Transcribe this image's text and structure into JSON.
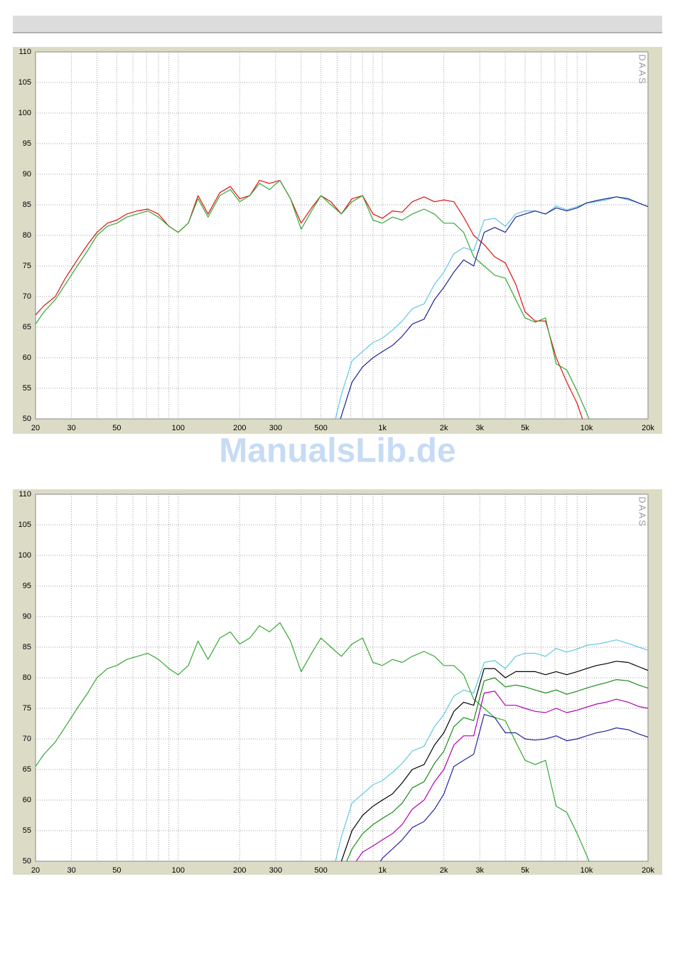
{
  "watermark": "ManualsLib.de",
  "chart_data": [
    {
      "type": "line",
      "xscale": "log",
      "grid": true,
      "annotation": "DAAS",
      "xlim": [
        20,
        20000
      ],
      "ylim": [
        50,
        110
      ],
      "yticks": [
        50,
        55,
        60,
        65,
        70,
        75,
        80,
        85,
        90,
        95,
        100,
        105,
        110
      ],
      "xticks": [
        20,
        30,
        50,
        100,
        200,
        300,
        500,
        {
          "value": 1000,
          "label": "1k"
        },
        {
          "value": 2000,
          "label": "2k"
        },
        {
          "value": 3000,
          "label": "3k"
        },
        {
          "value": 5000,
          "label": "5k"
        },
        {
          "value": 10000,
          "label": "10k"
        },
        {
          "value": 20000,
          "label": "20k"
        }
      ],
      "xminor": [
        40,
        60,
        70,
        80,
        90,
        400,
        600,
        700,
        800,
        900,
        4000,
        6000,
        7000,
        8000,
        9000
      ],
      "x": [
        20,
        22,
        25,
        28,
        32,
        36,
        40,
        45,
        50,
        56,
        63,
        71,
        80,
        90,
        100,
        112,
        125,
        140,
        160,
        180,
        200,
        224,
        250,
        280,
        315,
        355,
        400,
        450,
        500,
        560,
        630,
        710,
        800,
        900,
        1000,
        1120,
        1250,
        1400,
        1600,
        1800,
        2000,
        2240,
        2500,
        2800,
        3150,
        3550,
        4000,
        4500,
        5000,
        5600,
        6300,
        7100,
        8000,
        9000,
        10000,
        11200,
        12500,
        14000,
        16000,
        18000,
        20000
      ],
      "series": [
        {
          "color": "#e01010",
          "values": [
            67,
            68.5,
            70,
            73,
            76,
            78.5,
            80.5,
            82,
            82.5,
            83.5,
            84,
            84.3,
            83.5,
            81.5,
            80.5,
            82,
            86.5,
            83.5,
            87,
            88,
            86,
            86.5,
            89,
            88.5,
            89,
            86,
            82,
            84.5,
            86.5,
            85.5,
            83.5,
            86,
            86.5,
            83.5,
            82.8,
            84,
            83.8,
            85.5,
            86.3,
            85.5,
            85.8,
            85.5,
            83,
            80,
            78.5,
            76.5,
            75.5,
            72,
            67.5,
            66,
            66,
            60,
            56,
            52.5,
            48,
            null,
            null,
            null,
            null,
            null,
            null
          ]
        },
        {
          "color": "#34a834",
          "values": [
            65.5,
            67.5,
            69.5,
            72,
            75,
            77.5,
            80,
            81.5,
            82,
            83,
            83.5,
            84,
            83,
            81.5,
            80.5,
            82,
            86,
            83,
            86.5,
            87.5,
            85.5,
            86.5,
            88.5,
            87.5,
            89,
            86,
            81,
            84,
            86.5,
            85,
            83.5,
            85.5,
            86.5,
            82.5,
            82,
            83,
            82.5,
            83.5,
            84.3,
            83.5,
            82,
            82,
            80.5,
            76.5,
            75,
            73.5,
            73,
            69.5,
            66.5,
            65.8,
            66.5,
            59,
            58,
            54.5,
            51,
            47,
            null,
            null,
            null,
            null,
            null
          ]
        },
        {
          "color": "#60c8e0",
          "values": [
            null,
            null,
            null,
            null,
            null,
            null,
            null,
            null,
            null,
            null,
            null,
            null,
            null,
            null,
            null,
            null,
            null,
            null,
            null,
            null,
            null,
            null,
            null,
            null,
            null,
            null,
            null,
            null,
            null,
            47,
            54,
            59.5,
            61,
            62.5,
            63.2,
            64.5,
            66,
            68,
            68.8,
            72,
            74,
            77,
            78,
            77.5,
            82.5,
            82.8,
            81.5,
            83.5,
            84,
            84,
            83.5,
            84.8,
            84.2,
            84.7,
            85.3,
            85.5,
            85.8,
            86.3,
            85.8,
            85.3,
            84.7
          ]
        },
        {
          "color": "#1c2490",
          "values": [
            null,
            null,
            null,
            null,
            null,
            null,
            null,
            null,
            null,
            null,
            null,
            null,
            null,
            null,
            null,
            null,
            null,
            null,
            null,
            null,
            null,
            null,
            null,
            null,
            null,
            null,
            null,
            null,
            null,
            45,
            50.5,
            56,
            58.5,
            60,
            61,
            62,
            63.5,
            65.5,
            66.3,
            69.5,
            71.5,
            74,
            76,
            75,
            80.5,
            81.3,
            80.5,
            83,
            83.5,
            84,
            83.5,
            84.5,
            84,
            84.5,
            85.3,
            85.7,
            86,
            86.3,
            86,
            85.3,
            84.7
          ]
        }
      ]
    },
    {
      "type": "line",
      "xscale": "log",
      "grid": true,
      "annotation": "DAAS",
      "xlim": [
        20,
        20000
      ],
      "ylim": [
        50,
        110
      ],
      "yticks": [
        50,
        55,
        60,
        65,
        70,
        75,
        80,
        85,
        90,
        95,
        100,
        105,
        110
      ],
      "xticks": [
        20,
        30,
        50,
        100,
        200,
        300,
        500,
        {
          "value": 1000,
          "label": "1k"
        },
        {
          "value": 2000,
          "label": "2k"
        },
        {
          "value": 3000,
          "label": "3k"
        },
        {
          "value": 5000,
          "label": "5k"
        },
        {
          "value": 10000,
          "label": "10k"
        },
        {
          "value": 20000,
          "label": "20k"
        }
      ],
      "xminor": [
        40,
        60,
        70,
        80,
        90,
        400,
        600,
        700,
        800,
        900,
        4000,
        6000,
        7000,
        8000,
        9000
      ],
      "x": [
        20,
        22,
        25,
        28,
        32,
        36,
        40,
        45,
        50,
        56,
        63,
        71,
        80,
        90,
        100,
        112,
        125,
        140,
        160,
        180,
        200,
        224,
        250,
        280,
        315,
        355,
        400,
        450,
        500,
        560,
        630,
        710,
        800,
        900,
        1000,
        1120,
        1250,
        1400,
        1600,
        1800,
        2000,
        2240,
        2500,
        2800,
        3150,
        3550,
        4000,
        4500,
        5000,
        5600,
        6300,
        7100,
        8000,
        9000,
        10000,
        11200,
        12500,
        14000,
        16000,
        18000,
        20000
      ],
      "series": [
        {
          "color": "#34a834",
          "values": [
            65.5,
            67.5,
            69.5,
            72,
            75,
            77.5,
            80,
            81.5,
            82,
            83,
            83.5,
            84,
            83,
            81.5,
            80.5,
            82,
            86,
            83,
            86.5,
            87.5,
            85.5,
            86.5,
            88.5,
            87.5,
            89,
            86,
            81,
            84,
            86.5,
            85,
            83.5,
            85.5,
            86.5,
            82.5,
            82,
            83,
            82.5,
            83.5,
            84.3,
            83.5,
            82,
            82,
            80.5,
            76.5,
            75,
            73.5,
            73,
            69.5,
            66.5,
            65.8,
            66.5,
            59,
            58,
            54.5,
            51,
            47,
            null,
            null,
            null,
            null,
            null
          ]
        },
        {
          "color": "#60c8e0",
          "values": [
            null,
            null,
            null,
            null,
            null,
            null,
            null,
            null,
            null,
            null,
            null,
            null,
            null,
            null,
            null,
            null,
            null,
            null,
            null,
            null,
            null,
            null,
            null,
            null,
            null,
            null,
            null,
            null,
            null,
            47,
            54,
            59.5,
            61,
            62.5,
            63.2,
            64.5,
            66,
            68,
            68.8,
            72,
            74,
            77,
            78,
            77.5,
            82.5,
            82.8,
            81.5,
            83.5,
            84,
            84,
            83.5,
            84.8,
            84.2,
            84.7,
            85.3,
            85.5,
            85.8,
            86.2,
            85.6,
            85,
            84.5
          ]
        },
        {
          "color": "#000000",
          "values": [
            null,
            null,
            null,
            null,
            null,
            null,
            null,
            null,
            null,
            null,
            null,
            null,
            null,
            null,
            null,
            null,
            null,
            null,
            null,
            null,
            null,
            null,
            null,
            null,
            null,
            null,
            null,
            null,
            null,
            45,
            50,
            55,
            57.5,
            59,
            60,
            61,
            62.8,
            65,
            65.8,
            69,
            71,
            74.5,
            76,
            75.5,
            81.5,
            81.5,
            80,
            81,
            81,
            81,
            80.5,
            81,
            80.5,
            81,
            81.5,
            82,
            82.3,
            82.7,
            82.5,
            81.8,
            81.2
          ]
        },
        {
          "color": "#1a8a1a",
          "values": [
            null,
            null,
            null,
            null,
            null,
            null,
            null,
            null,
            null,
            null,
            null,
            null,
            null,
            null,
            null,
            null,
            null,
            null,
            null,
            null,
            null,
            null,
            null,
            null,
            null,
            null,
            null,
            null,
            null,
            null,
            48,
            52,
            54.5,
            56,
            57,
            58,
            59.5,
            62,
            63,
            66,
            68,
            72,
            73.5,
            73,
            79.5,
            80,
            78.5,
            78.8,
            78.5,
            78,
            77.5,
            78,
            77.3,
            77.8,
            78.3,
            78.8,
            79.2,
            79.7,
            79.5,
            78.8,
            78.3
          ]
        },
        {
          "color": "#b000b0",
          "values": [
            null,
            null,
            null,
            null,
            null,
            null,
            null,
            null,
            null,
            null,
            null,
            null,
            null,
            null,
            null,
            null,
            null,
            null,
            null,
            null,
            null,
            null,
            null,
            null,
            null,
            null,
            null,
            null,
            null,
            null,
            45,
            49,
            51.5,
            52.5,
            53.5,
            54.5,
            56,
            58.5,
            60,
            63,
            65,
            69,
            70.5,
            70.5,
            77.5,
            77.8,
            75.5,
            75.5,
            75,
            74.5,
            74.3,
            75,
            74.3,
            74.7,
            75.2,
            75.7,
            76,
            76.5,
            76,
            75.3,
            75
          ]
        },
        {
          "color": "#2424a4",
          "values": [
            null,
            null,
            null,
            null,
            null,
            null,
            null,
            null,
            null,
            null,
            null,
            null,
            null,
            null,
            null,
            null,
            null,
            null,
            null,
            null,
            null,
            null,
            null,
            null,
            null,
            null,
            null,
            null,
            null,
            null,
            null,
            null,
            null,
            48,
            50.5,
            52,
            53.5,
            55.5,
            56.5,
            58.5,
            61,
            65.5,
            66.5,
            67.5,
            74,
            73.5,
            71,
            71,
            70,
            69.8,
            70,
            70.5,
            69.7,
            70,
            70.5,
            71,
            71.3,
            71.8,
            71.5,
            70.8,
            70.3
          ]
        }
      ]
    }
  ]
}
